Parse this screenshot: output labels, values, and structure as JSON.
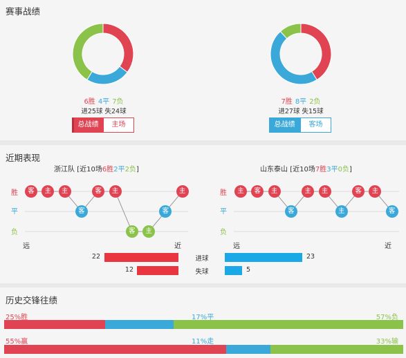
{
  "sections": {
    "record_title": "赛事战绩",
    "recent_title": "近期表现",
    "history_title": "历史交锋往绩"
  },
  "left_record": {
    "win": "6胜",
    "draw": "4平",
    "loss": "7负",
    "goals_for": "进25球",
    "goals_against": "失24球",
    "btn_total": "总战绩",
    "btn_venue": "主场",
    "donut": {
      "win": 6,
      "draw": 4,
      "loss": 7
    }
  },
  "right_record": {
    "win": "7胜",
    "draw": "8平",
    "loss": "2负",
    "goals_for": "进27球",
    "goals_against": "失15球",
    "btn_total": "总战绩",
    "btn_venue": "客场",
    "donut": {
      "win": 7,
      "draw": 8,
      "loss": 2
    }
  },
  "recent": {
    "y_win": "胜",
    "y_draw": "平",
    "y_loss": "负",
    "far": "远",
    "near": "近",
    "left": {
      "team": "浙江队",
      "prefix": "[近10场",
      "win": "6胜",
      "draw": "2平",
      "loss": "2负",
      "suffix": "]",
      "results": [
        "W",
        "W",
        "W",
        "D",
        "W",
        "W",
        "L",
        "L",
        "D",
        "W"
      ],
      "venues": [
        "客",
        "主",
        "主",
        "客",
        "客",
        "主",
        "客",
        "主",
        "客",
        "主"
      ]
    },
    "right": {
      "team": "山东泰山",
      "prefix": "[近10场",
      "win": "7胜",
      "draw": "3平",
      "loss": "0负",
      "suffix": "]",
      "results": [
        "W",
        "W",
        "W",
        "D",
        "W",
        "W",
        "D",
        "W",
        "W",
        "D"
      ],
      "venues": [
        "主",
        "客",
        "主",
        "客",
        "主",
        "主",
        "主",
        "客",
        "主",
        "客"
      ]
    },
    "goals": {
      "for_label": "进球",
      "against_label": "失球",
      "left_for": 22,
      "left_against": 12,
      "right_for": 23,
      "right_against": 5
    }
  },
  "history": {
    "row1": {
      "left": "25%胜",
      "mid": "17%平",
      "right": "57%负",
      "values": [
        25,
        17,
        57
      ]
    },
    "row2": {
      "left": "55%赢",
      "mid": "11%走",
      "right": "33%输",
      "values": [
        55,
        11,
        33
      ]
    }
  },
  "colors": {
    "win": "#e04452",
    "draw": "#3aa9da",
    "loss": "#8bc34a"
  }
}
